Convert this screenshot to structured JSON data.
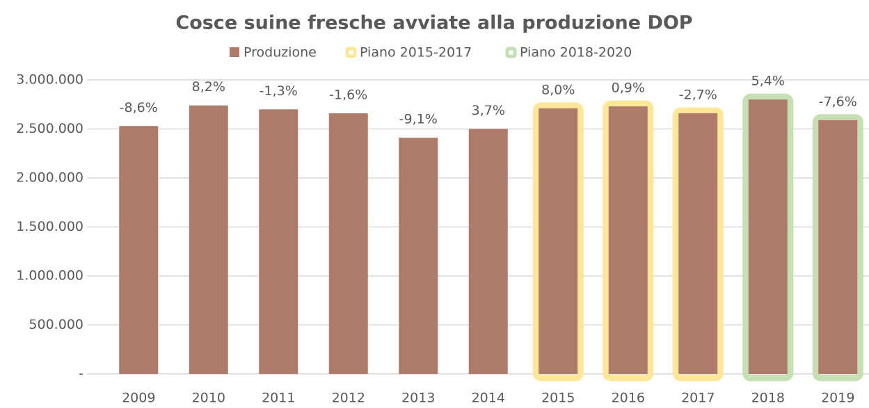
{
  "chart_data": {
    "type": "bar",
    "title": "Cosce suine fresche avviate alla produzione DOP",
    "categories": [
      "2009",
      "2010",
      "2011",
      "2012",
      "2013",
      "2014",
      "2015",
      "2016",
      "2017",
      "2018",
      "2019"
    ],
    "series": [
      {
        "name": "Produzione",
        "color": "#ae7a6a",
        "values": [
          2530000,
          2740000,
          2700000,
          2660000,
          2410000,
          2500000,
          2710000,
          2730000,
          2660000,
          2800000,
          2590000
        ]
      }
    ],
    "annotations": [
      "-8,6%",
      "8,2%",
      "-1,3%",
      "-1,6%",
      "-9,1%",
      "3,7%",
      "8,0%",
      "0,9%",
      "-2,7%",
      "5,4%",
      "-7,6%"
    ],
    "highlights": [
      {
        "name": "Piano 2015-2017",
        "color": "#ffe699",
        "categories": [
          "2015",
          "2016",
          "2017"
        ]
      },
      {
        "name": "Piano 2018-2020",
        "color": "#c5e0b4",
        "categories": [
          "2018",
          "2019"
        ]
      }
    ],
    "ylim": [
      0,
      3000000
    ],
    "yticks": [
      {
        "value": 0,
        "label": "-"
      },
      {
        "value": 500000,
        "label": "500.000"
      },
      {
        "value": 1000000,
        "label": "1.000.000"
      },
      {
        "value": 1500000,
        "label": "1.500.000"
      },
      {
        "value": 2000000,
        "label": "2.000.000"
      },
      {
        "value": 2500000,
        "label": "2.500.000"
      },
      {
        "value": 3000000,
        "label": "3.000.000"
      }
    ],
    "grid": true,
    "legend": "top"
  }
}
